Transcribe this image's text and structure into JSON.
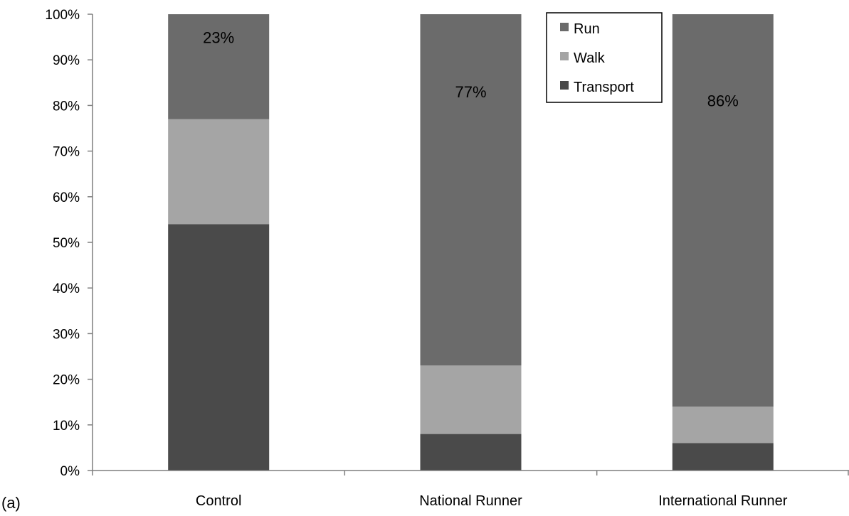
{
  "panel_label": "(a)",
  "chart_data": {
    "type": "bar",
    "stacked": true,
    "percent_axis": true,
    "categories": [
      "Control",
      "National Runner",
      "International Runner"
    ],
    "series": [
      {
        "name": "Transport",
        "color": "#4a4a4a",
        "values": [
          54,
          8,
          6
        ]
      },
      {
        "name": "Walk",
        "color": "#a5a5a5",
        "values": [
          23,
          15,
          8
        ]
      },
      {
        "name": "Run",
        "color": "#6b6b6b",
        "values": [
          23,
          77,
          86
        ]
      }
    ],
    "data_labels": [
      {
        "category": "Control",
        "series": "Run",
        "text": "23%"
      },
      {
        "category": "National Runner",
        "series": "Run",
        "text": "77%"
      },
      {
        "category": "International Runner",
        "series": "Run",
        "text": "86%"
      }
    ],
    "ylim": [
      0,
      100
    ],
    "yticks": [
      "0%",
      "10%",
      "20%",
      "30%",
      "40%",
      "50%",
      "60%",
      "70%",
      "80%",
      "90%",
      "100%"
    ],
    "xlabel": "",
    "ylabel": "",
    "title": "",
    "legend": {
      "position": "top-right",
      "order": [
        "Run",
        "Walk",
        "Transport"
      ]
    },
    "grid": false
  }
}
